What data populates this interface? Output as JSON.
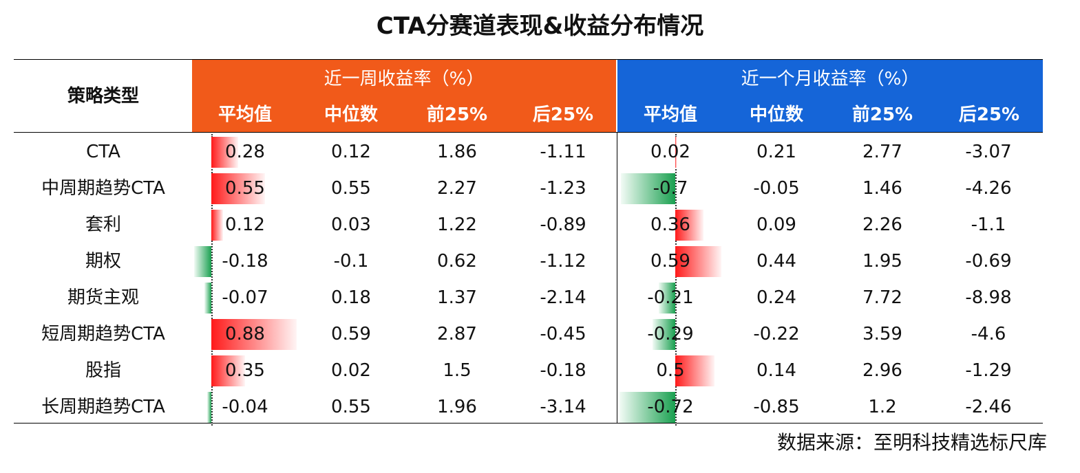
{
  "title": "CTA分赛道表现&收益分布情况",
  "colors": {
    "week_header": "#f15a1a",
    "month_header": "#1565d8",
    "positive_bar": "#ff1a1a",
    "negative_bar": "#1aa050"
  },
  "table": {
    "strategy_header": "策略类型",
    "groups": [
      {
        "label": "近一周收益率（%）",
        "columns": [
          "平均值",
          "中位数",
          "前25%",
          "后25%"
        ]
      },
      {
        "label": "近一个月收益率（%）",
        "columns": [
          "平均值",
          "中位数",
          "前25%",
          "后25%"
        ]
      }
    ]
  },
  "chart_data": {
    "type": "table",
    "title": "CTA分赛道表现&收益分布情况",
    "categories": [
      "CTA",
      "中周期趋势CTA",
      "套利",
      "期权",
      "期货主观",
      "短周期趋势CTA",
      "股指",
      "长周期趋势CTA"
    ],
    "week": {
      "mean": [
        "0.28",
        "0.55",
        "0.12",
        "-0.18",
        "-0.07",
        "0.88",
        "0.35",
        "-0.04"
      ],
      "median": [
        "0.12",
        "0.55",
        "0.03",
        "-0.1",
        "0.18",
        "0.59",
        "0.02",
        "0.55"
      ],
      "top25": [
        "1.86",
        "2.27",
        "1.22",
        "0.62",
        "1.37",
        "2.87",
        "1.5",
        "1.96"
      ],
      "bottom25": [
        "-1.11",
        "-1.23",
        "-0.89",
        "-1.12",
        "-2.14",
        "-0.45",
        "-0.18",
        "-3.14"
      ]
    },
    "month": {
      "mean": [
        "0.02",
        "-0.7",
        "0.36",
        "0.59",
        "-0.21",
        "-0.29",
        "0.5",
        "-0.72"
      ],
      "median": [
        "0.21",
        "-0.05",
        "0.09",
        "0.44",
        "0.24",
        "-0.22",
        "0.14",
        "-0.85"
      ],
      "top25": [
        "2.77",
        "1.46",
        "2.26",
        "1.95",
        "7.72",
        "3.59",
        "2.96",
        "1.2"
      ],
      "bottom25": [
        "-3.07",
        "-4.26",
        "-1.1",
        "-0.69",
        "-8.98",
        "-4.6",
        "-1.29",
        "-2.46"
      ]
    }
  },
  "source": "数据来源：至明科技精选标尺库"
}
